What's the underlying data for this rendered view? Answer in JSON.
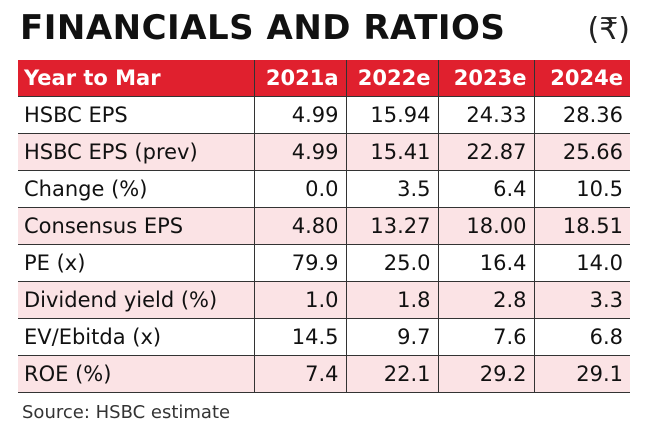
{
  "title": "FINANCIALS AND RATIOS",
  "currency": "(₹)",
  "table": {
    "headers": [
      "Year to Mar",
      "2021a",
      "2022e",
      "2023e",
      "2024e"
    ],
    "rows": [
      [
        "HSBC EPS",
        "4.99",
        "15.94",
        "24.33",
        "28.36"
      ],
      [
        "HSBC EPS (prev)",
        "4.99",
        "15.41",
        "22.87",
        "25.66"
      ],
      [
        "Change (%)",
        "0.0",
        "3.5",
        "6.4",
        "10.5"
      ],
      [
        "Consensus EPS",
        "4.80",
        "13.27",
        "18.00",
        "18.51"
      ],
      [
        "PE (x)",
        "79.9",
        "25.0",
        "16.4",
        "14.0"
      ],
      [
        "Dividend yield (%)",
        "1.0",
        "1.8",
        "2.8",
        "3.3"
      ],
      [
        "EV/Ebitda (x)",
        "14.5",
        "9.7",
        "7.6",
        "6.8"
      ],
      [
        "ROE (%)",
        "7.4",
        "22.1",
        "29.2",
        "29.1"
      ]
    ]
  },
  "source": "Source: HSBC estimate",
  "colors": {
    "header_bg": "#e0202e",
    "stripe_bg": "#fbe3e5"
  }
}
